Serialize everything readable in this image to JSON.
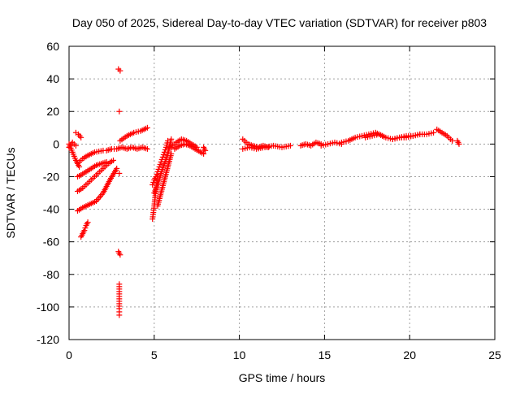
{
  "chart_data": {
    "type": "scatter",
    "title": "Day 050 of 2025, Sidereal Day-to-day VTEC variation (SDTVAR) for receiver p803",
    "xlabel": "GPS time / hours",
    "ylabel": "SDTVAR / TECUs",
    "xlim": [
      0,
      25
    ],
    "ylim": [
      -120,
      60
    ],
    "xticks": [
      0,
      5,
      10,
      15,
      20,
      25
    ],
    "yticks": [
      -120,
      -100,
      -80,
      -60,
      -40,
      -20,
      0,
      20,
      40,
      60
    ],
    "grid": true,
    "marker": "plus",
    "series": [
      {
        "name": "SDTVAR",
        "color": "#ff0000",
        "segments": [
          {
            "x": [
              0.0,
              0.2,
              0.4,
              0.6
            ],
            "y": [
              0,
              -5,
              -10,
              -14
            ]
          },
          {
            "x": [
              0.0,
              0.2,
              0.4
            ],
            "y": [
              -2,
              1,
              -1
            ]
          },
          {
            "x": [
              0.4,
              0.55,
              0.7
            ],
            "y": [
              7,
              6,
              4
            ]
          },
          {
            "x": [
              0.5,
              0.8,
              1.1,
              1.5,
              2.0
            ],
            "y": [
              -12,
              -9,
              -7,
              -5,
              -4
            ]
          },
          {
            "x": [
              0.5,
              0.7,
              1.0,
              1.3,
              1.6,
              1.9,
              2.2
            ],
            "y": [
              -20,
              -19,
              -17,
              -15,
              -13,
              -12,
              -11
            ]
          },
          {
            "x": [
              0.5,
              0.8,
              1.1,
              1.4,
              1.7,
              2.0,
              2.3,
              2.6
            ],
            "y": [
              -29,
              -27,
              -24,
              -21,
              -18,
              -15,
              -12,
              -10
            ]
          },
          {
            "x": [
              0.5,
              0.8,
              1.2,
              1.6,
              2.0,
              2.4,
              2.8
            ],
            "y": [
              -41,
              -39,
              -37,
              -35,
              -30,
              -22,
              -15
            ]
          },
          {
            "x": [
              0.7,
              0.8,
              0.9,
              1.0,
              1.1
            ],
            "y": [
              -57,
              -55,
              -53,
              -50,
              -48
            ]
          },
          {
            "x": [
              2.2,
              2.5,
              2.8,
              3.1,
              3.4,
              3.7,
              4.0,
              4.3,
              4.6
            ],
            "y": [
              -4,
              -3,
              -3,
              -2,
              -3,
              -2,
              -3,
              -2,
              -3
            ]
          },
          {
            "x": [
              3.0,
              3.4,
              3.8,
              4.2,
              4.6
            ],
            "y": [
              2,
              5,
              7,
              8,
              10
            ]
          },
          {
            "x": [
              2.9,
              3.0
            ],
            "y": [
              46,
              45
            ]
          },
          {
            "x": [
              2.95
            ],
            "y": [
              20
            ]
          },
          {
            "x": [
              2.9,
              3.0
            ],
            "y": [
              -66,
              -68
            ]
          },
          {
            "x": [
              2.95,
              2.95,
              2.95,
              2.95,
              2.95,
              2.95,
              2.95,
              2.95
            ],
            "y": [
              -86,
              -89,
              -92,
              -95,
              -98,
              -101,
              -103,
              -105
            ]
          },
          {
            "x": [
              2.95
            ],
            "y": [
              -18
            ]
          },
          {
            "x": [
              4.9,
              4.95,
              5.0,
              5.05,
              5.1,
              5.15,
              5.2
            ],
            "y": [
              -46,
              -42,
              -38,
              -33,
              -28,
              -24,
              -20
            ]
          },
          {
            "x": [
              4.9,
              5.0,
              5.1,
              5.2,
              5.3,
              5.4,
              5.5,
              5.6,
              5.7,
              5.8
            ],
            "y": [
              -25,
              -22,
              -20,
              -17,
              -14,
              -11,
              -8,
              -5,
              -2,
              2
            ]
          },
          {
            "x": [
              5.0,
              5.2,
              5.4,
              5.6,
              5.8,
              6.0
            ],
            "y": [
              -30,
              -25,
              -18,
              -12,
              -6,
              3
            ]
          },
          {
            "x": [
              5.2,
              5.4,
              5.6,
              5.8,
              6.0
            ],
            "y": [
              -38,
              -30,
              -22,
              -14,
              -6
            ]
          },
          {
            "x": [
              6.0,
              6.3,
              6.6,
              6.9,
              7.2,
              7.5
            ],
            "y": [
              -2,
              1,
              3,
              2,
              0,
              -2
            ]
          },
          {
            "x": [
              6.2,
              6.5,
              6.8,
              7.1,
              7.4,
              7.9
            ],
            "y": [
              -3,
              -1,
              0,
              -1,
              -3,
              -6
            ]
          },
          {
            "x": [
              7.9,
              8.0
            ],
            "y": [
              -2,
              -4
            ]
          },
          {
            "x": [
              10.2,
              10.5,
              10.8,
              11.1,
              11.4,
              11.7
            ],
            "y": [
              3,
              0,
              -1,
              -2,
              -1,
              -2
            ]
          },
          {
            "x": [
              10.2,
              10.6,
              11.0,
              11.5,
              12.0,
              12.5,
              13.0
            ],
            "y": [
              -3,
              -2,
              -3,
              -2,
              -1,
              -2,
              -1
            ]
          },
          {
            "x": [
              13.6,
              13.9,
              14.2,
              14.5,
              14.8
            ],
            "y": [
              -1,
              0,
              -1,
              1,
              0
            ]
          },
          {
            "x": [
              14.8,
              15.2,
              15.6,
              16.0
            ],
            "y": [
              -1,
              0,
              1,
              0
            ]
          },
          {
            "x": [
              16.0,
              16.4,
              16.8,
              17.2,
              17.6,
              18.0,
              18.4
            ],
            "y": [
              1,
              2,
              4,
              5,
              6,
              7,
              5
            ]
          },
          {
            "x": [
              17.4,
              17.8,
              18.2,
              18.6,
              19.0,
              19.4,
              19.8,
              20.2,
              20.6
            ],
            "y": [
              4,
              5,
              6,
              4,
              3,
              4,
              5,
              5,
              6
            ]
          },
          {
            "x": [
              19.0,
              19.4,
              19.8,
              20.2,
              20.6,
              21.0,
              21.4
            ],
            "y": [
              3,
              4,
              4,
              5,
              6,
              6,
              7
            ]
          },
          {
            "x": [
              21.6,
              21.9,
              22.2,
              22.5
            ],
            "y": [
              9,
              7,
              5,
              2
            ]
          },
          {
            "x": [
              22.8,
              22.9
            ],
            "y": [
              2,
              0
            ]
          }
        ]
      }
    ]
  }
}
